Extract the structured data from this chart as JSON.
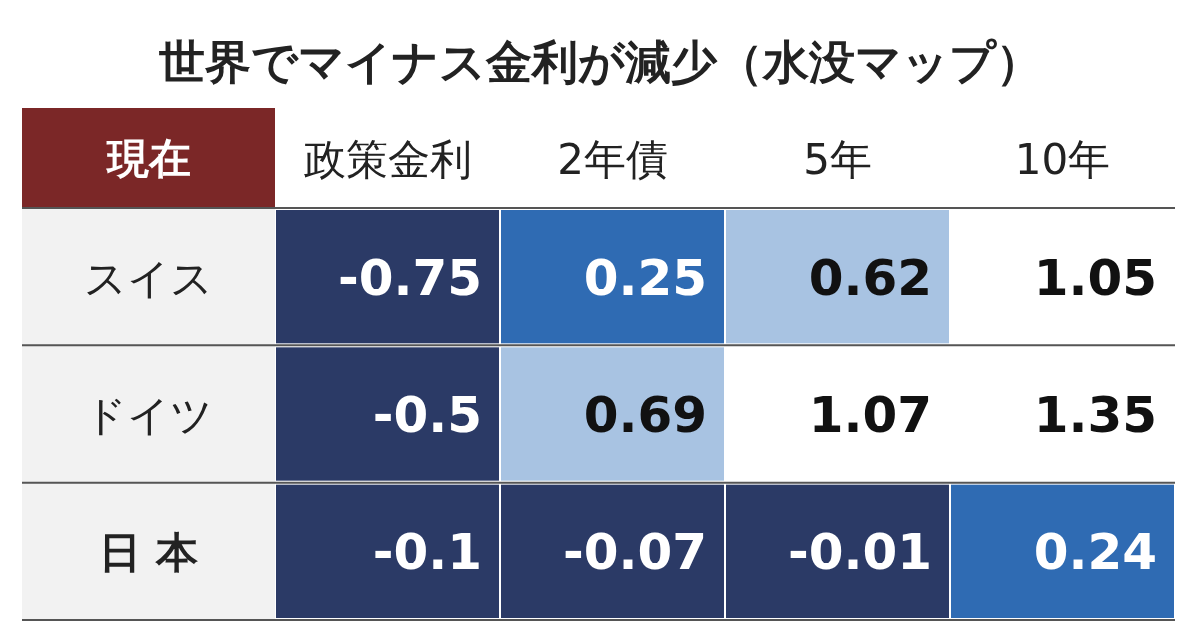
{
  "chart_data": {
    "type": "heatmap",
    "title": "世界でマイナス金利が減少（水没マップ）",
    "ylabel": "現在",
    "categories": [
      "政策金利",
      "2年債",
      "5年",
      "10年"
    ],
    "y_categories": [
      "スイス",
      "ドイツ",
      "日 本"
    ],
    "data_labels": true,
    "cells": [
      [
        -0.75,
        0.25,
        0.62,
        1.05
      ],
      [
        -0.5,
        0.69,
        1.07,
        1.35
      ],
      [
        -0.1,
        -0.07,
        -0.01,
        0.24
      ]
    ]
  }
}
